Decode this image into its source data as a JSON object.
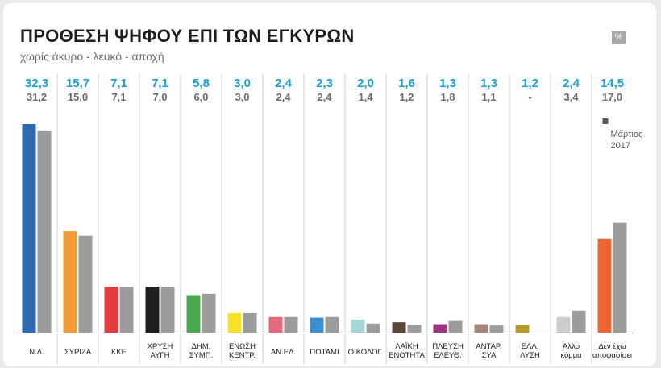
{
  "header": {
    "title": "ΠΡΟΘΕΣΗ ΨΗΦΟΥ ΕΠΙ ΤΩΝ ΕΓΚΥΡΩΝ",
    "subtitle": "χωρίς άκυρο - λευκό - αποχή",
    "unit": "%"
  },
  "chart_data": {
    "type": "bar",
    "title": "ΠΡΟΘΕΣΗ ΨΗΦΟΥ ΕΠΙ ΤΩΝ ΕΓΚΥΡΩΝ",
    "subtitle": "χωρίς άκυρο - λευκό - αποχή",
    "unit": "%",
    "categories": [
      [
        "Ν.Δ."
      ],
      [
        "ΣΥΡΙΖΑ"
      ],
      [
        "ΚΚΕ"
      ],
      [
        "ΧΡΥΣΗ",
        "ΑΥΓΗ"
      ],
      [
        "ΔΗΜ.",
        "ΣΥΜΠ."
      ],
      [
        "ΕΝΩΣΗ",
        "ΚΕΝΤΡ."
      ],
      [
        "ΑΝ.ΕΛ."
      ],
      [
        "ΠΟΤΑΜΙ"
      ],
      [
        "ΟΙΚΟΛΟΓ."
      ],
      [
        "ΛΑΪΚΗ",
        "ΕΝΟΤΗΤΑ"
      ],
      [
        "ΠΛΕΥΣΗ",
        "ΕΛΕΥΘ."
      ],
      [
        "ΑΝΤΑΡ.",
        "ΣΥΑ"
      ],
      [
        "ΕΛΛ.",
        "ΛΥΣΗ"
      ],
      [
        "Άλλο",
        "κόμμα"
      ],
      [
        "Δεν έχω",
        "αποφασίσει"
      ]
    ],
    "series": [
      {
        "values": [
          32.3,
          15.7,
          7.1,
          7.1,
          5.8,
          3.0,
          2.4,
          2.3,
          2.0,
          1.6,
          1.3,
          1.3,
          1.2,
          2.4,
          14.5
        ],
        "labels": [
          "32,3",
          "15,7",
          "7,1",
          "7,1",
          "5,8",
          "3,0",
          "2,4",
          "2,3",
          "2,0",
          "1,6",
          "1,3",
          "1,3",
          "1,2",
          "2,4",
          "14,5"
        ],
        "colors": [
          "#2e6ab0",
          "#f39a36",
          "#e23b3b",
          "#1f1f1f",
          "#4aa84f",
          "#f5e22a",
          "#e5677a",
          "#3b8fd0",
          "#a6d5d8",
          "#5a4538",
          "#9b3580",
          "#a58578",
          "#b49a28",
          "#cdcdcd",
          "#ec6633"
        ]
      },
      {
        "name": "Μάρτιος 2017",
        "values": [
          31.2,
          15.0,
          7.1,
          7.0,
          6.0,
          3.0,
          2.4,
          2.4,
          1.4,
          1.2,
          1.8,
          1.1,
          null,
          3.4,
          17.0
        ],
        "labels": [
          "31,2",
          "15,0",
          "7,1",
          "7,0",
          "6,0",
          "3,0",
          "2,4",
          "2,4",
          "1,4",
          "1,2",
          "1,8",
          "1,1",
          "-",
          "3,4",
          "17,0"
        ],
        "color": "#9c9c9c"
      }
    ],
    "legend": {
      "label_lines": [
        "Μάρτιος",
        "2017"
      ],
      "color": "#5c5654",
      "position": "top-right"
    },
    "ylim": [
      0,
      32.3
    ],
    "grid": false
  }
}
